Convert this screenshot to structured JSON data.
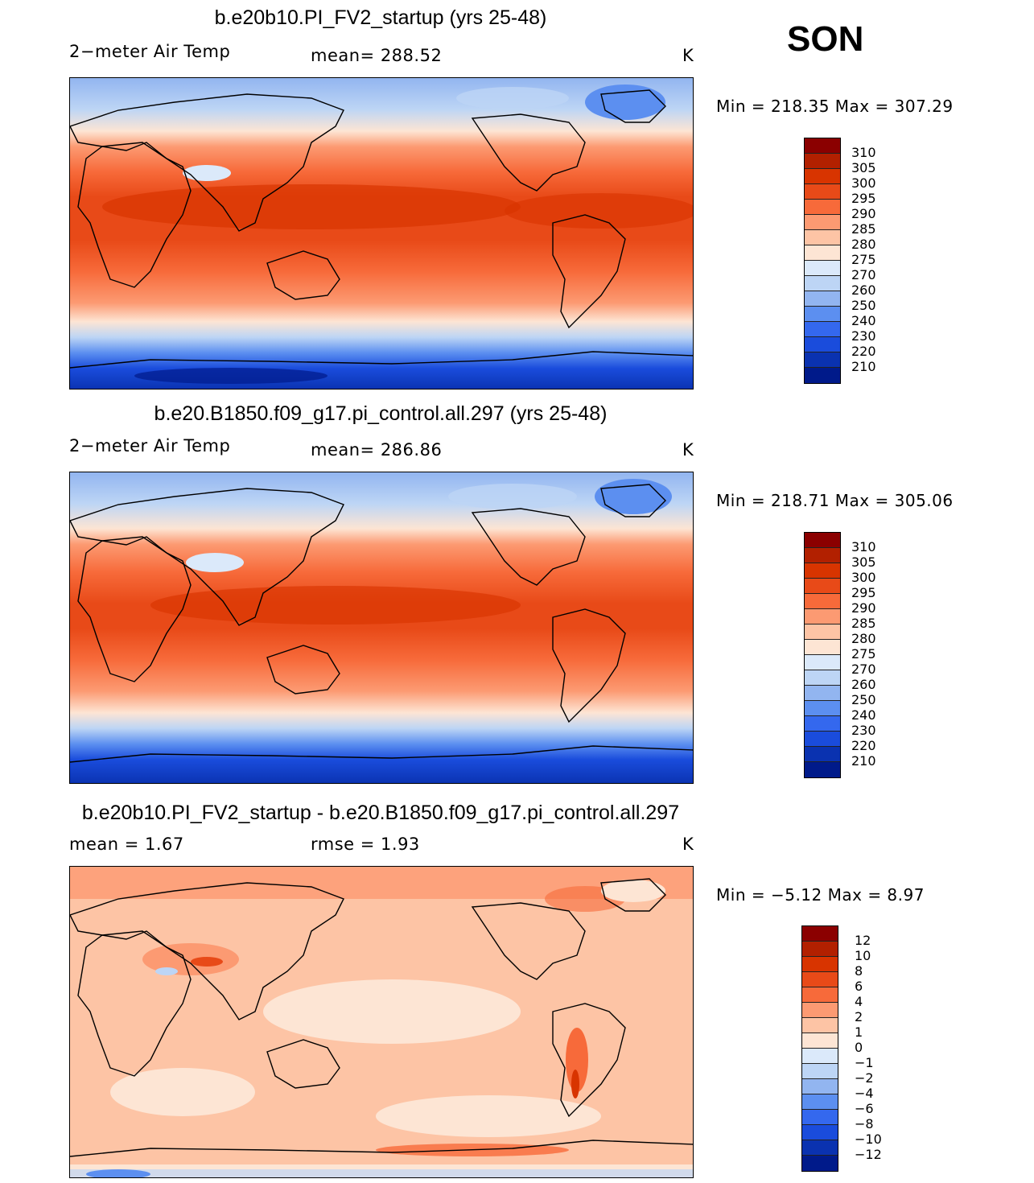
{
  "season": "SON",
  "temp_colors": [
    "#8b0000",
    "#b22000",
    "#d83400",
    "#e84a18",
    "#f76a3a",
    "#fc9a72",
    "#fdc4a5",
    "#fde5d4",
    "#dbe9fa",
    "#bdd5f5",
    "#92b5f0",
    "#5c8ff0",
    "#3468ee",
    "#1a4cdc",
    "#0a32b0",
    "#001a8a"
  ],
  "diff_colors": [
    "#8b0000",
    "#b22000",
    "#d83400",
    "#e84a18",
    "#f76a3a",
    "#fc9a72",
    "#fdc4a5",
    "#fde5d4",
    "#dbe9fa",
    "#bdd5f5",
    "#92b5f0",
    "#5c8ff0",
    "#3468ee",
    "#1a4cdc",
    "#0a32b0",
    "#001a8a"
  ],
  "panels": [
    {
      "title": "b.e20b10.PI_FV2_startup (yrs 25-48)",
      "left_label": "2−meter Air Temp",
      "center_label": "mean=  288.52",
      "units": "K",
      "minmax": "Min  =  218.35  Max  =  307.29",
      "colorbar_labels": [
        "310",
        "305",
        "300",
        "295",
        "290",
        "285",
        "280",
        "275",
        "270",
        "260",
        "250",
        "240",
        "230",
        "220",
        "210"
      ]
    },
    {
      "title": "b.e20.B1850.f09_g17.pi_control.all.297 (yrs 25-48)",
      "left_label": "2−meter Air Temp",
      "center_label": "mean=  286.86",
      "units": "K",
      "minmax": "Min  =  218.71  Max  =  305.06",
      "colorbar_labels": [
        "310",
        "305",
        "300",
        "295",
        "290",
        "285",
        "280",
        "275",
        "270",
        "260",
        "250",
        "240",
        "230",
        "220",
        "210"
      ]
    },
    {
      "title": "b.e20b10.PI_FV2_startup - b.e20.B1850.f09_g17.pi_control.all.297",
      "left_label": "mean  =      1.67",
      "center_label": "rmse  =      1.93",
      "units": "K",
      "minmax": "Min  =    −5.12  Max  =      8.97",
      "colorbar_labels": [
        "12",
        "10",
        "8",
        "6",
        "4",
        "2",
        "1",
        "0",
        "−1",
        "−2",
        "−4",
        "−6",
        "−8",
        "−10",
        "−12"
      ]
    }
  ]
}
